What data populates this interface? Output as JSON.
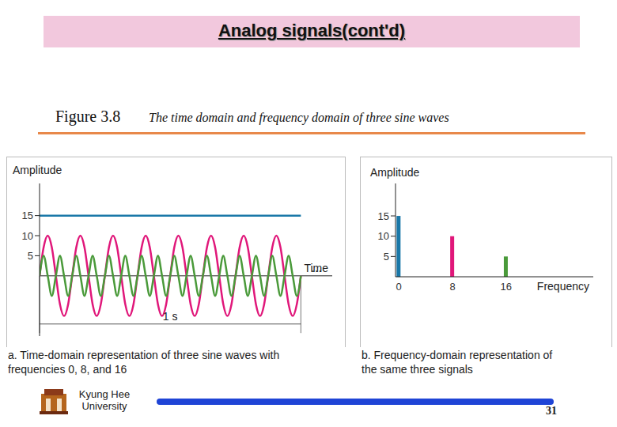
{
  "title": "Analog signals(cont'd)",
  "figure": {
    "number": "Figure 3.8",
    "caption": "The time domain and frequency domain of three sine waves"
  },
  "chart_data": [
    {
      "type": "line",
      "y_label": "Amplitude",
      "x_label": "Time",
      "continuation": "...",
      "span": {
        "from": 0,
        "to": 1,
        "label": "1 s"
      },
      "caption": [
        "a. Time-domain representation of three sine waves with",
        "frequencies 0, 8, and 16"
      ],
      "x": [
        0,
        0.015625,
        0.03125,
        0.046875,
        0.0625,
        0.078125,
        0.09375,
        0.109375,
        0.125,
        0.140625,
        0.15625,
        0.171875,
        0.1875,
        0.203125,
        0.21875,
        0.234375,
        0.25,
        0.265625,
        0.28125,
        0.296875,
        0.3125,
        0.328125,
        0.34375,
        0.359375,
        0.375,
        0.390625,
        0.40625,
        0.421875,
        0.4375,
        0.453125,
        0.46875,
        0.484375,
        0.5,
        0.515625,
        0.53125,
        0.546875,
        0.5625,
        0.578125,
        0.59375,
        0.609375,
        0.625,
        0.640625,
        0.65625,
        0.671875,
        0.6875,
        0.703125,
        0.71875,
        0.734375,
        0.75,
        0.765625,
        0.78125,
        0.796875,
        0.8125,
        0.828125,
        0.84375,
        0.859375,
        0.875,
        0.890625,
        0.90625,
        0.921875,
        0.9375,
        0.953125,
        0.96875,
        0.984375,
        1
      ],
      "xlim": [
        0,
        1.12
      ],
      "ylim": [
        -15,
        23
      ],
      "yticks": [
        5,
        10,
        15
      ],
      "tick_labels": "y",
      "marker": "none",
      "series": [
        {
          "color": "#e0177a",
          "values": [
            0,
            7.1,
            10,
            7.1,
            0,
            -7.1,
            -10,
            -7.1,
            0,
            7.1,
            10,
            7.1,
            0,
            -7.1,
            -10,
            -7.1,
            0,
            7.1,
            10,
            7.1,
            0,
            -7.1,
            -10,
            -7.1,
            0,
            7.1,
            10,
            7.1,
            0,
            -7.1,
            -10,
            -7.1,
            0,
            7.1,
            10,
            7.1,
            0,
            -7.1,
            -10,
            -7.1,
            0,
            7.1,
            10,
            7.1,
            0,
            -7.1,
            -10,
            -7.1,
            0,
            7.1,
            10,
            7.1,
            0,
            -7.1,
            -10,
            -7.1,
            0,
            7.1,
            10,
            7.1,
            0,
            -7.1,
            -10,
            -7.1,
            0
          ]
        },
        {
          "color": "#4a9a3a",
          "values": [
            0,
            5,
            0,
            -5,
            0,
            5,
            0,
            -5,
            0,
            5,
            0,
            -5,
            0,
            5,
            0,
            -5,
            0,
            5,
            0,
            -5,
            0,
            5,
            0,
            -5,
            0,
            5,
            0,
            -5,
            0,
            5,
            0,
            -5,
            0,
            5,
            0,
            -5,
            0,
            5,
            0,
            -5,
            0,
            5,
            0,
            -5,
            0,
            5,
            0,
            -5,
            0,
            5,
            0,
            -5,
            0,
            5,
            0,
            -5,
            0,
            5,
            0,
            -5,
            0,
            5,
            0,
            -5,
            0
          ]
        },
        {
          "color": "#1a78a8",
          "values": [
            15,
            15,
            15,
            15,
            15,
            15,
            15,
            15,
            15,
            15,
            15,
            15,
            15,
            15,
            15,
            15,
            15,
            15,
            15,
            15,
            15,
            15,
            15,
            15,
            15,
            15,
            15,
            15,
            15,
            15,
            15,
            15,
            15,
            15,
            15,
            15,
            15,
            15,
            15,
            15,
            15,
            15,
            15,
            15,
            15,
            15,
            15,
            15,
            15,
            15,
            15,
            15,
            15,
            15,
            15,
            15,
            15,
            15,
            15,
            15,
            15,
            15,
            15,
            15,
            15
          ]
        }
      ]
    },
    {
      "type": "bar",
      "y_label": "Amplitude",
      "x_label": "Frequency",
      "caption": [
        "b. Frequency-domain representation of",
        "the same three signals"
      ],
      "x": [
        0,
        8,
        16
      ],
      "values": [
        15,
        10,
        5
      ],
      "colors": [
        "#1a78a8",
        "#e0177a",
        "#4a9a3a"
      ],
      "xlim": [
        -0.5,
        29
      ],
      "xticks": [
        0,
        8,
        16
      ],
      "ylim": [
        0,
        23
      ],
      "yticks": [
        5,
        10,
        15
      ]
    }
  ],
  "footer": {
    "university": [
      "Kyung Hee",
      "University"
    ],
    "page": 31
  }
}
